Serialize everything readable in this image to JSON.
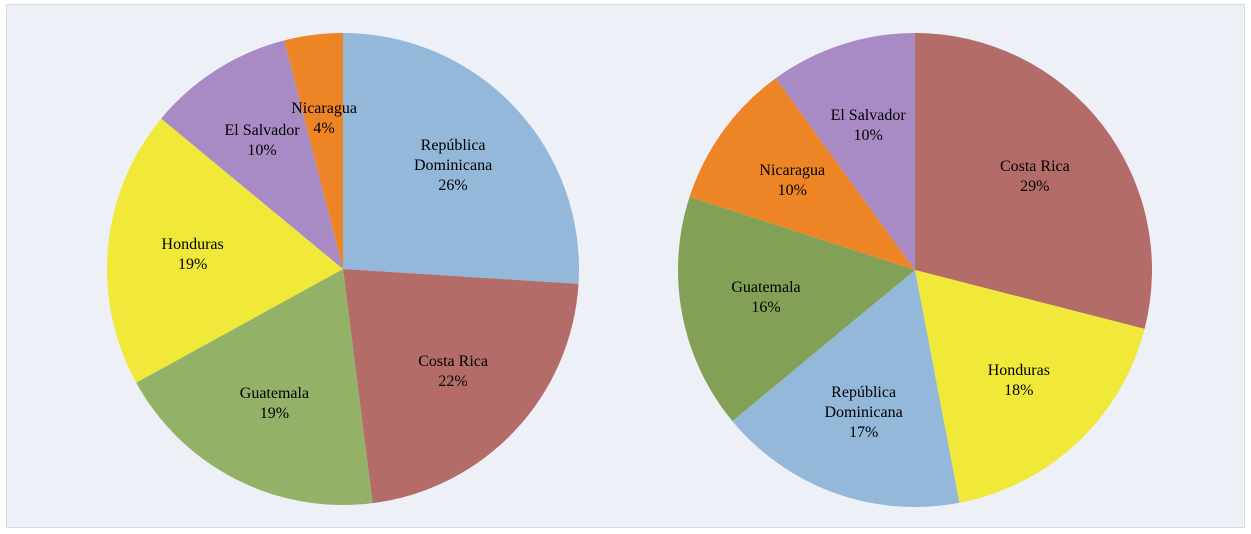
{
  "chart_data": [
    {
      "type": "pie",
      "categories": [
        "República Dominicana",
        "Costa Rica",
        "Guatemala",
        "Honduras",
        "El Salvador",
        "Nicaragua"
      ],
      "values": [
        26,
        22,
        19,
        19,
        10,
        4
      ],
      "value_labels": [
        "26%",
        "22%",
        "19%",
        "19%",
        "10%",
        "4%"
      ],
      "colors": [
        "#93b8da",
        "#b36c68",
        "#93b167",
        "#f0e939",
        "#a88ac5",
        "#ed8527"
      ]
    },
    {
      "type": "pie",
      "categories": [
        "Costa Rica",
        "Honduras",
        "República Dominicana",
        "Guatemala",
        "Nicaragua",
        "El Salvador"
      ],
      "values": [
        29,
        18,
        17,
        16,
        10,
        10
      ],
      "value_labels": [
        "29%",
        "18%",
        "17%",
        "16%",
        "10%",
        "10%"
      ],
      "colors": [
        "#b36c68",
        "#f0e939",
        "#93b8da",
        "#82a056",
        "#ed8527",
        "#a88ac5"
      ]
    }
  ]
}
